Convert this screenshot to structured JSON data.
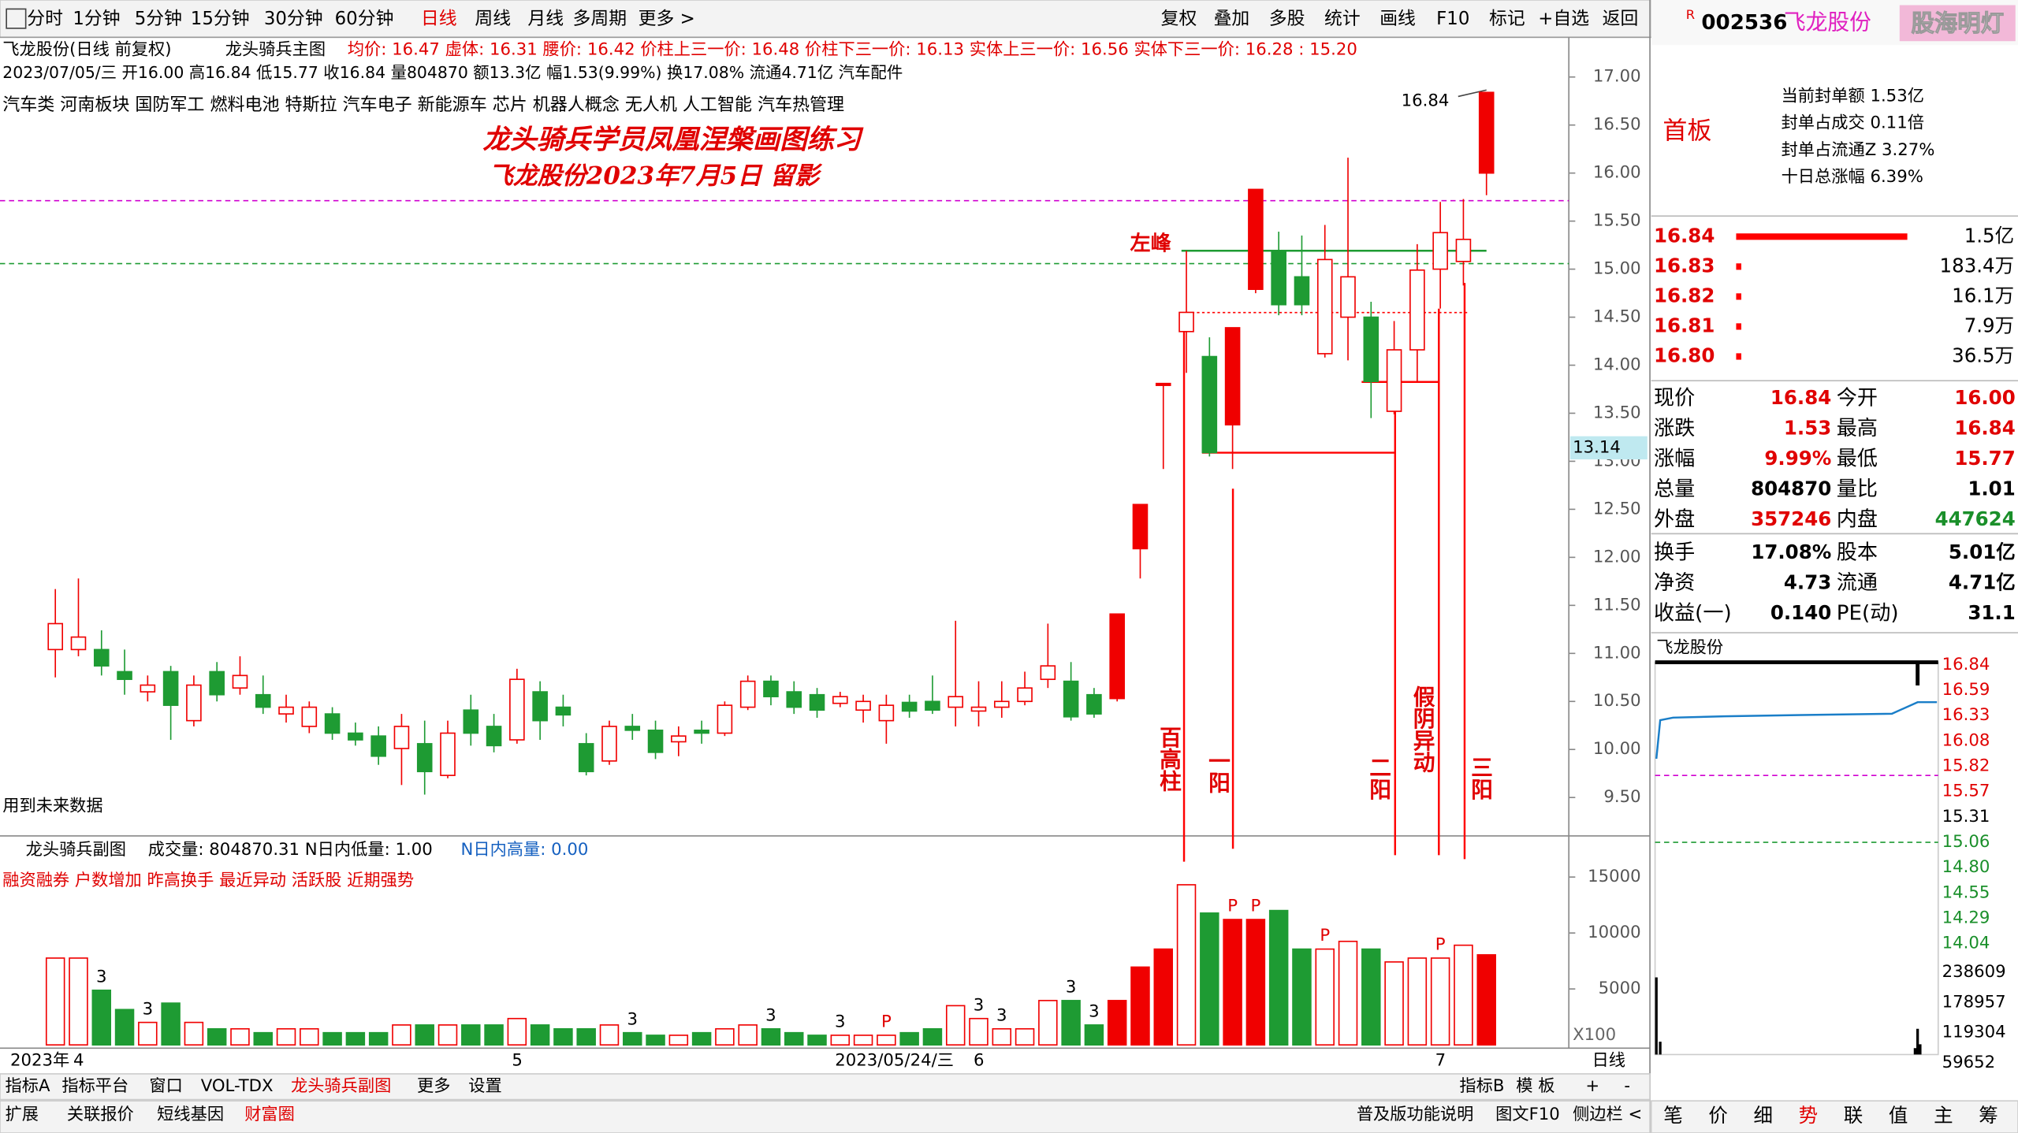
{
  "toolbar": {
    "left": [
      "分时",
      "1分钟",
      "5分钟",
      "15分钟",
      "30分钟",
      "60分钟",
      "日线",
      "周线",
      "月线",
      "多周期",
      "更多 >"
    ],
    "right": [
      "复权",
      "叠加",
      "多股",
      "统计",
      "画线",
      "F10",
      "标记",
      "+自选",
      "返回"
    ]
  },
  "info": {
    "stock": "飞龙股份(日线 前复权)",
    "indicator": "龙头骑兵主图",
    "params": "均价: 16.47 虚体: 16.31 腰价: 16.42 价柱上三一价: 16.48 价柱下三一价: 16.13 实体上三一价: 16.56 实体下三一价: 16.28 : 15.20",
    "quote": "2023/07/05/三 开16.00 高16.84 低15.77 收16.84 量804870 额13.3亿 幅1.53(9.99%) 换17.08% 流通4.71亿 汽车配件",
    "concepts": "汽车类 河南板块 国防军工 燃料电池 特斯拉 汽车电子 新能源车 芯片 机器人概念 无人机 人工智能 汽车热管理",
    "title1": "龙头骑兵学员凤凰涅槃画图练习",
    "title2": "飞龙股份2023年7月5日 留影",
    "notes": [
      "左峰",
      "百高柱",
      "一阳",
      "二阳",
      "假阴异动",
      "三阳"
    ],
    "future": "用到未来数据"
  },
  "chart_data": {
    "type": "candlestick",
    "open": [
      11.04,
      11.04,
      11.04,
      10.81,
      10.6,
      10.81,
      10.3,
      10.81,
      10.64,
      10.57,
      10.37,
      10.24,
      10.37,
      10.17,
      10.14,
      10.01,
      10.06,
      9.73,
      10.41,
      10.24,
      10.1,
      10.6,
      10.44,
      10.06,
      9.88,
      10.24,
      10.2,
      10.08,
      10.2,
      10.17,
      10.44,
      10.71,
      10.6,
      10.57,
      10.48,
      10.41,
      10.3,
      10.49,
      10.5,
      10.44,
      10.4,
      10.44,
      10.5,
      10.73,
      10.71,
      10.57,
      10.53,
      12.09,
      13.81,
      14.35,
      14.09,
      13.38,
      14.79,
      15.19,
      14.92,
      14.12,
      14.5,
      14.5,
      13.52,
      14.16,
      15.0,
      15.08,
      16.0
    ],
    "high": [
      11.67,
      11.78,
      11.24,
      11.04,
      10.77,
      10.87,
      10.77,
      10.91,
      10.97,
      10.77,
      10.57,
      10.5,
      10.44,
      10.28,
      10.24,
      10.37,
      10.3,
      10.3,
      10.57,
      10.37,
      10.84,
      10.71,
      10.57,
      10.17,
      10.3,
      10.37,
      10.3,
      10.24,
      10.3,
      10.5,
      10.77,
      10.77,
      10.71,
      10.64,
      10.6,
      10.57,
      10.57,
      10.57,
      10.77,
      11.34,
      10.71,
      10.71,
      10.81,
      11.31,
      10.91,
      10.64,
      11.41,
      12.55,
      13.81,
      15.19,
      14.29,
      14.39,
      15.83,
      15.39,
      15.35,
      15.46,
      16.16,
      14.66,
      14.46,
      15.26,
      15.7,
      15.73,
      16.84
    ],
    "low": [
      10.75,
      10.97,
      10.77,
      10.57,
      10.5,
      10.1,
      10.24,
      10.5,
      10.57,
      10.37,
      10.28,
      10.17,
      10.1,
      10.04,
      9.84,
      9.63,
      9.53,
      9.7,
      10.04,
      9.97,
      10.06,
      10.1,
      10.24,
      9.73,
      9.84,
      10.1,
      9.9,
      9.93,
      10.06,
      10.14,
      10.41,
      10.46,
      10.37,
      10.33,
      10.44,
      10.28,
      10.06,
      10.33,
      10.37,
      10.24,
      10.24,
      10.33,
      10.46,
      10.64,
      10.3,
      10.33,
      10.5,
      11.78,
      12.92,
      13.92,
      13.05,
      12.92,
      14.75,
      14.52,
      14.52,
      14.08,
      14.05,
      13.45,
      13.49,
      13.83,
      14.59,
      14.83,
      15.77
    ],
    "close": [
      11.31,
      11.17,
      10.87,
      10.73,
      10.67,
      10.46,
      10.67,
      10.57,
      10.77,
      10.44,
      10.44,
      10.44,
      10.17,
      10.1,
      9.93,
      10.24,
      9.77,
      10.17,
      10.17,
      10.04,
      10.73,
      10.3,
      10.36,
      9.77,
      10.24,
      10.2,
      9.97,
      10.14,
      10.17,
      10.46,
      10.71,
      10.55,
      10.44,
      10.41,
      10.55,
      10.5,
      10.46,
      10.4,
      10.41,
      10.55,
      10.44,
      10.5,
      10.64,
      10.87,
      10.34,
      10.37,
      11.41,
      12.55,
      13.81,
      14.55,
      13.09,
      14.39,
      15.83,
      14.63,
      14.63,
      15.1,
      14.92,
      13.83,
      14.16,
      14.99,
      15.38,
      15.31,
      16.84
    ],
    "volume": [
      7759,
      7759,
      4885,
      3161,
      2011,
      3736,
      2011,
      1437,
      1437,
      1092,
      1437,
      1437,
      1092,
      1092,
      1092,
      1782,
      1782,
      1782,
      1782,
      1782,
      2356,
      1782,
      1437,
      1437,
      1782,
      1092,
      862,
      862,
      1092,
      1437,
      1782,
      1437,
      1092,
      862,
      862,
      862,
      862,
      1092,
      1437,
      3506,
      2356,
      1437,
      1437,
      3965,
      3965,
      1782,
      3965,
      6954,
      8563,
      14310,
      11782,
      11207,
      11207,
      12011,
      8563,
      8563,
      9253,
      8563,
      7414,
      7759,
      7759,
      8908,
      8048.7
    ],
    "volume_signals": [
      null,
      null,
      "3",
      null,
      "3",
      null,
      null,
      null,
      null,
      null,
      null,
      null,
      null,
      null,
      null,
      null,
      null,
      null,
      null,
      null,
      null,
      null,
      null,
      null,
      null,
      "3",
      null,
      null,
      null,
      null,
      null,
      "3",
      null,
      null,
      "3",
      null,
      "P",
      null,
      null,
      null,
      "3",
      "3",
      null,
      null,
      "3",
      "3",
      null,
      null,
      null,
      null,
      null,
      "P",
      "P",
      null,
      null,
      "P",
      null,
      null,
      null,
      null,
      "P",
      null,
      null
    ],
    "categories": [
      null,
      "4",
      null,
      null,
      null,
      null,
      null,
      null,
      null,
      null,
      null,
      null,
      null,
      null,
      null,
      null,
      null,
      null,
      null,
      null,
      "5",
      null,
      null,
      null,
      null,
      null,
      null,
      null,
      null,
      null,
      null,
      null,
      null,
      null,
      "2023/05/24/三",
      null,
      null,
      null,
      null,
      null,
      "6",
      null,
      null,
      null,
      null,
      null,
      null,
      null,
      null,
      null,
      null,
      null,
      null,
      null,
      null,
      null,
      null,
      null,
      null,
      null,
      "7",
      null,
      null
    ],
    "year": "2023年",
    "period": "日线",
    "up_color": "#f00000",
    "down_color": "#1e9b33",
    "ylim": [
      9.1,
      17.4
    ],
    "yticks": [
      {
        "value": 9.5,
        "label": "9.50"
      },
      {
        "value": 10,
        "label": "10.00"
      },
      {
        "value": 10.5,
        "label": "10.50"
      },
      {
        "value": 11,
        "label": "11.00"
      },
      {
        "value": 11.5,
        "label": "11.50"
      },
      {
        "value": 12,
        "label": "12.00"
      },
      {
        "value": 12.5,
        "label": "12.50"
      },
      {
        "value": 13,
        "label": "13.00"
      },
      {
        "value": 13.5,
        "label": "13.50"
      },
      {
        "value": 14,
        "label": "14.00"
      },
      {
        "value": 14.5,
        "label": "14.50"
      },
      {
        "value": 15,
        "label": "15.00"
      },
      {
        "value": 15.5,
        "label": "15.50"
      },
      {
        "value": 16,
        "label": "16.00"
      },
      {
        "value": 16.5,
        "label": "16.50"
      },
      {
        "value": 17,
        "label": "17.00"
      }
    ],
    "price_marker": {
      "value": 13.14,
      "label": "13.14"
    },
    "high_label": {
      "value": 16.84,
      "label": "16.84"
    },
    "vol_ylim": [
      0,
      18100
    ],
    "vol_yticks": [
      5000,
      10000,
      15000
    ],
    "vol_unit": "X100",
    "sub_title": "龙头骑兵副图",
    "sub_params": "成交量: 804870.31 N日内低量: 1.00",
    "sub_high": "N日内高量: 0.00",
    "sub_signals": "融资融券 户数增加 昨高换手 最近异动 活跃股 近期强势"
  },
  "bottom": {
    "tabs": [
      "指标A",
      "指标平台",
      "窗口",
      "VOL-TDX",
      "龙头骑兵副图",
      "更多",
      "设置"
    ],
    "tabs_right": [
      "指标B",
      "模 板",
      "+",
      "-"
    ],
    "bar": [
      "扩展",
      "关联报价",
      "短线基因",
      "财富圈"
    ],
    "bar_right": [
      "普及版功能说明",
      "图文F10",
      "侧边栏 <"
    ]
  },
  "side": {
    "r": "R",
    "code": "002536",
    "name": "飞龙股份",
    "brand": "股海明灯",
    "board": "首板",
    "stats": [
      "当前封单额 1.53亿",
      "封单占成交 0.11倍",
      "封单占流通Z 3.27%",
      "十日总涨幅 6.39%"
    ],
    "book": [
      [
        "16.84",
        "1.5亿"
      ],
      [
        "16.83",
        "183.4万"
      ],
      [
        "16.82",
        "16.1万"
      ],
      [
        "16.81",
        "7.9万"
      ],
      [
        "16.80",
        "36.5万"
      ]
    ],
    "quote": [
      [
        "现价",
        "16.84",
        "今开",
        "16.00"
      ],
      [
        "涨跌",
        "1.53",
        "最高",
        "16.84"
      ],
      [
        "涨幅",
        "9.99%",
        "最低",
        "15.77"
      ],
      [
        "总量",
        "804870",
        "量比",
        "1.01"
      ],
      [
        "外盘",
        "357246",
        "内盘",
        "447624"
      ],
      [
        "换手",
        "17.08%",
        "股本",
        "5.01亿"
      ],
      [
        "净资",
        "4.73",
        "流通",
        "4.71亿"
      ],
      [
        "收益(一)",
        "0.140",
        "PE(动)",
        "31.1"
      ]
    ],
    "mini_title": "飞龙股份",
    "mini_labels": [
      "16.84",
      "16.59",
      "16.33",
      "16.08",
      "15.82",
      "15.57",
      "15.31",
      "15.06",
      "14.80",
      "14.55",
      "14.29",
      "14.04"
    ],
    "mini_vol": [
      "238609",
      "178957",
      "119304",
      "59652"
    ],
    "tabs": [
      "笔",
      "价",
      "细",
      "势",
      "联",
      "值",
      "主",
      "筹"
    ]
  }
}
